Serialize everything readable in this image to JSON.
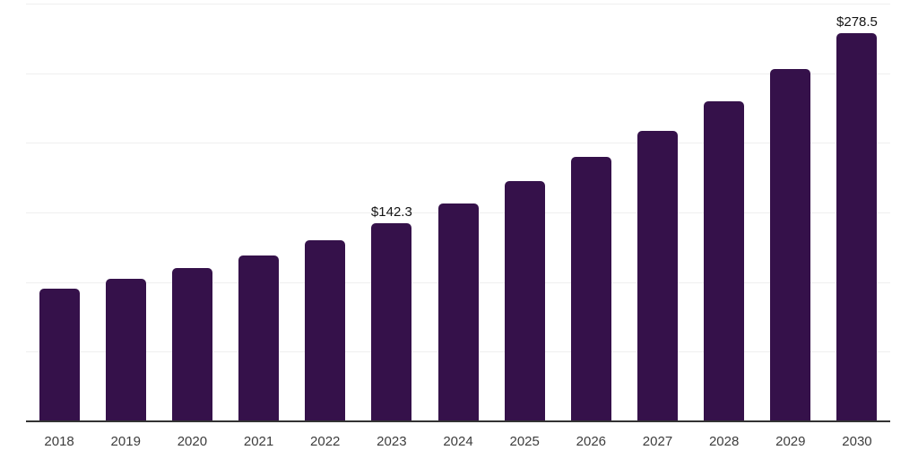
{
  "chart_data": {
    "type": "bar",
    "categories": [
      "2018",
      "2019",
      "2020",
      "2021",
      "2022",
      "2023",
      "2024",
      "2025",
      "2026",
      "2027",
      "2028",
      "2029",
      "2030"
    ],
    "values": [
      95.1,
      102.3,
      110.0,
      119.2,
      130.1,
      142.3,
      156.6,
      172.4,
      189.7,
      208.8,
      229.8,
      253.0,
      278.5
    ],
    "annotations": [
      {
        "category": "2023",
        "text": "$142.3"
      },
      {
        "category": "2030",
        "text": "$278.5"
      }
    ],
    "xlabel": "",
    "ylabel": "",
    "ylim": [
      0,
      300
    ],
    "gridline_step": 50,
    "grid": true,
    "y_axis_labels_visible": false,
    "legend_position": "none",
    "colors": {
      "bar": "#35114A",
      "axis_line": "#333333",
      "gridline": "#efefef",
      "tick_label": "#3d3d3d",
      "annotation": "#141414",
      "background": "#ffffff"
    }
  }
}
